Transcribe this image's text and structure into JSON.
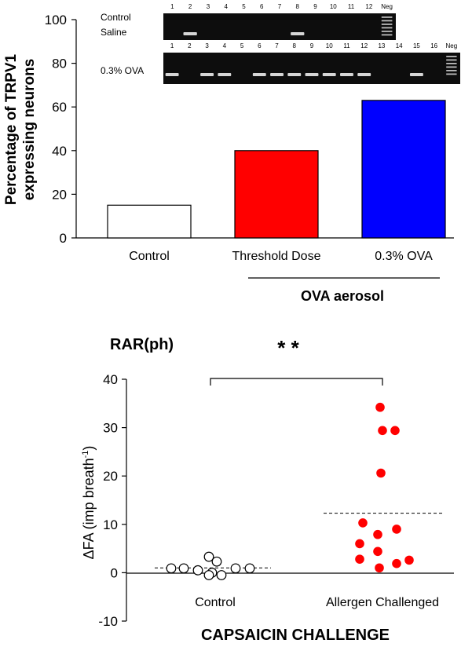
{
  "chart_data": [
    {
      "type": "bar",
      "categories": [
        "Control",
        "Threshold Dose",
        "0.3% OVA"
      ],
      "values": [
        15,
        40,
        63
      ],
      "colors": [
        "#ffffff",
        "#ff0000",
        "#0000ff"
      ],
      "ylabel_line1": "Percentage of TRPV1",
      "ylabel_line2": "expressing neurons",
      "ylim": [
        0,
        100
      ],
      "yticks": [
        0,
        20,
        40,
        60,
        80,
        100
      ],
      "group_label": "OVA aerosol",
      "gel_panels": [
        {
          "label_lines": [
            "Control",
            "Saline"
          ],
          "lanes": [
            "1",
            "2",
            "3",
            "4",
            "5",
            "6",
            "7",
            "8",
            "9",
            "10",
            "11",
            "12",
            "Neg"
          ],
          "positive_lanes": [
            "2",
            "8"
          ]
        },
        {
          "label_lines": [
            "0.3% OVA"
          ],
          "lanes": [
            "1",
            "2",
            "3",
            "4",
            "5",
            "6",
            "7",
            "8",
            "9",
            "10",
            "11",
            "12",
            "13",
            "14",
            "15",
            "16",
            "Neg"
          ],
          "positive_lanes": [
            "1",
            "3",
            "4",
            "6",
            "7",
            "8",
            "9",
            "10",
            "11",
            "12",
            "15"
          ]
        }
      ]
    },
    {
      "type": "scatter",
      "title": "RAR(ph)",
      "significance": "* *",
      "xlabel": "CAPSAICIN CHALLENGE",
      "ylabel_main": "ΔFA (imp breath",
      "ylabel_sup": "-1",
      "ylabel_close": ")",
      "ylim": [
        -10,
        40
      ],
      "yticks": [
        -10,
        0,
        10,
        20,
        30,
        40
      ],
      "groups": [
        {
          "name": "Control",
          "fill": "#ffffff",
          "mean": 1,
          "values": [
            3.3,
            2.3,
            0.9,
            0.9,
            0.5,
            0,
            -0.5,
            -0.5,
            0.9,
            0.9
          ]
        },
        {
          "name": "Allergen Challenged",
          "fill": "#ff0000",
          "mean": 12.3,
          "values": [
            34.2,
            29.4,
            29.4,
            20.6,
            10.3,
            9.0,
            7.9,
            6.0,
            4.4,
            2.8,
            2.6,
            1.9,
            1.0
          ]
        }
      ]
    }
  ]
}
